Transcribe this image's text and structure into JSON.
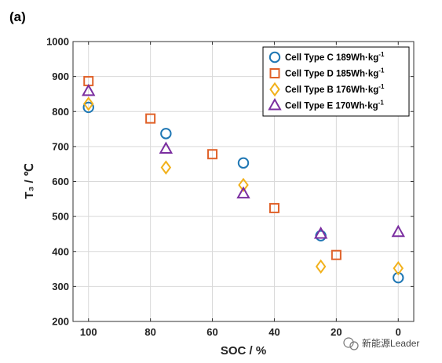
{
  "panel_label": "(a)",
  "watermark": "新能源Leader",
  "chart_data": {
    "type": "scatter",
    "xlabel": "SOC / %",
    "ylabel": "T₃ / ℃",
    "xlim": [
      105,
      -5
    ],
    "x_reversed": true,
    "ylim": [
      200,
      1000
    ],
    "xticks": [
      100,
      80,
      60,
      40,
      20,
      0
    ],
    "yticks": [
      200,
      300,
      400,
      500,
      600,
      700,
      800,
      900,
      1000
    ],
    "grid": true,
    "legend_position": "top-right",
    "series": [
      {
        "name": "Cell Type C 189Wh·kg",
        "superscript": "-1",
        "marker": "circle",
        "color": "#1f77b4",
        "points": [
          [
            100,
            812
          ],
          [
            75,
            737
          ],
          [
            50,
            653
          ],
          [
            25,
            445
          ],
          [
            0,
            325
          ]
        ]
      },
      {
        "name": "Cell Type D 185Wh·kg",
        "superscript": "-1",
        "marker": "square",
        "color": "#e0622a",
        "points": [
          [
            100,
            887
          ],
          [
            80,
            780
          ],
          [
            60,
            678
          ],
          [
            40,
            524
          ],
          [
            20,
            390
          ]
        ]
      },
      {
        "name": "Cell Type B 176Wh·kg",
        "superscript": "-1",
        "marker": "diamond",
        "color": "#f2b11b",
        "points": [
          [
            100,
            822
          ],
          [
            75,
            640
          ],
          [
            50,
            590
          ],
          [
            25,
            357
          ],
          [
            0,
            352
          ]
        ]
      },
      {
        "name": "Cell Type E 170Wh·kg",
        "superscript": "-1",
        "marker": "triangle",
        "color": "#7b2ea0",
        "points": [
          [
            100,
            858
          ],
          [
            75,
            693
          ],
          [
            50,
            565
          ],
          [
            25,
            450
          ],
          [
            0,
            455
          ]
        ]
      }
    ]
  }
}
